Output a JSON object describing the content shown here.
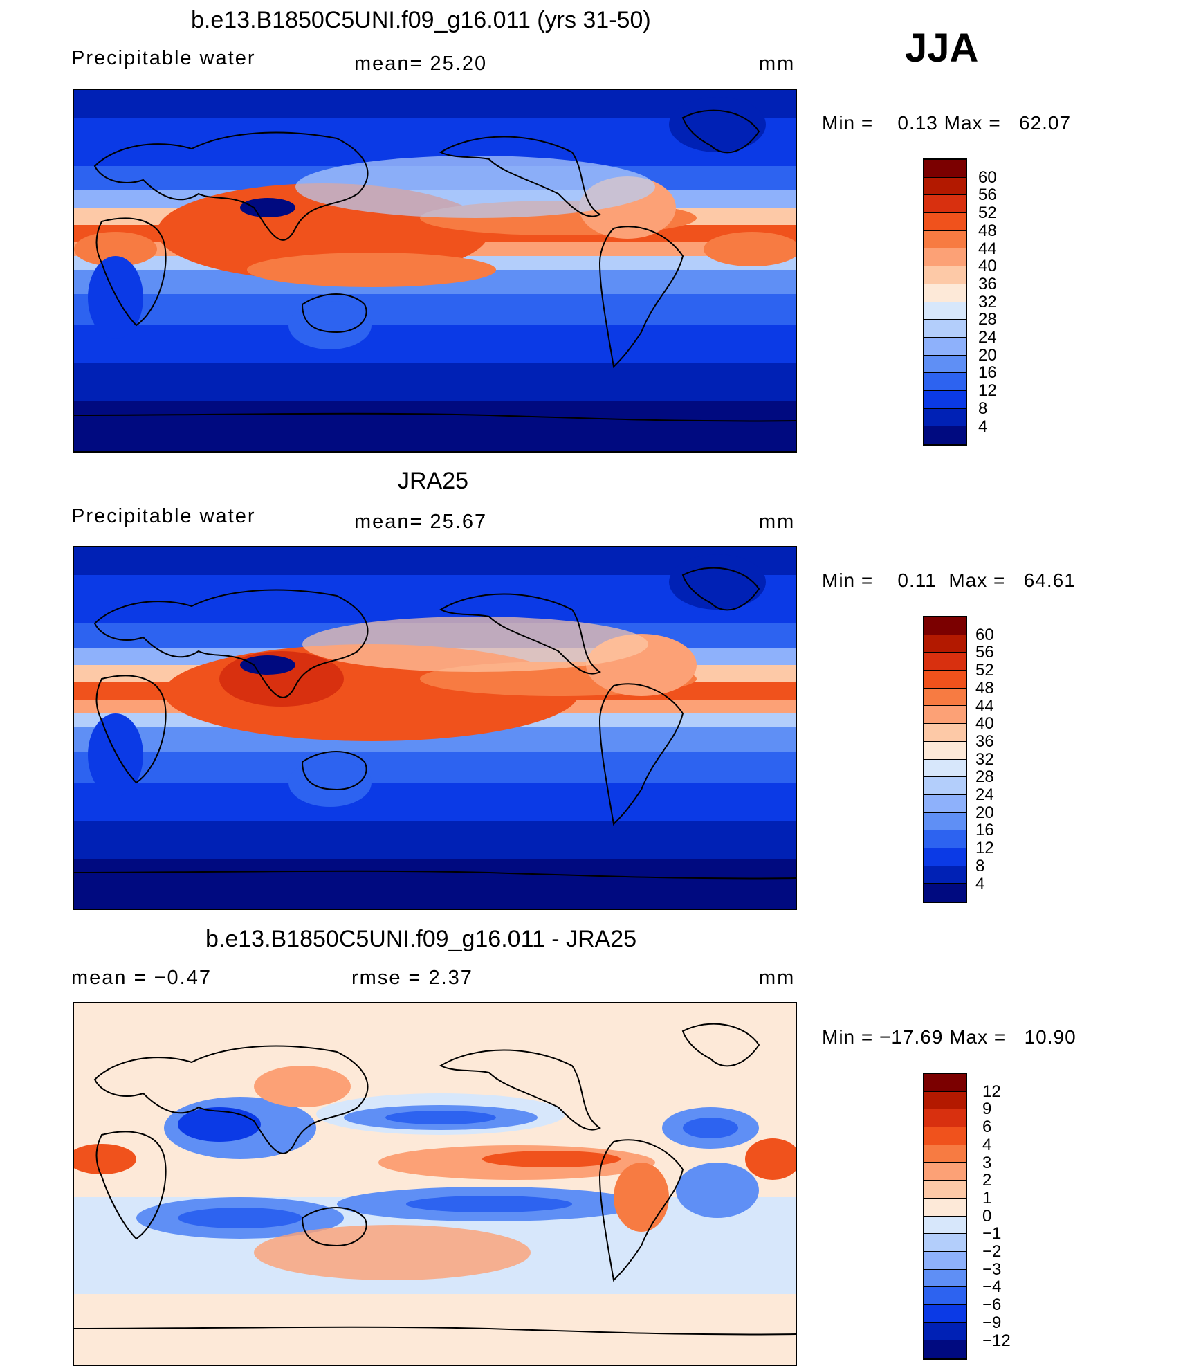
{
  "season": "JJA",
  "panels": [
    {
      "title": "b.e13.B1850C5UNI.f09_g16.011 (yrs 31-50)",
      "left_label": "Precipitable water",
      "center_label": "mean=   25.20",
      "units": "mm",
      "minmax": "Min =    0.13 Max =   62.07",
      "colorbar": {
        "labels": [
          "60",
          "56",
          "52",
          "48",
          "44",
          "40",
          "36",
          "32",
          "28",
          "24",
          "20",
          "16",
          "12",
          "8",
          "4"
        ],
        "colors": [
          "#7b0000",
          "#b31900",
          "#d8300f",
          "#f0521c",
          "#f77b42",
          "#fca176",
          "#fdc9a7",
          "#fde9d8",
          "#d7e7fb",
          "#b3cefb",
          "#8eb1fb",
          "#5f8ff5",
          "#2d63f0",
          "#0b3ae6",
          "#0021b5",
          "#000a80"
        ]
      }
    },
    {
      "title": "JRA25",
      "left_label": "Precipitable water",
      "center_label": "mean=   25.67",
      "units": "mm",
      "minmax": "Min =    0.11  Max =   64.61",
      "colorbar": {
        "labels": [
          "60",
          "56",
          "52",
          "48",
          "44",
          "40",
          "36",
          "32",
          "28",
          "24",
          "20",
          "16",
          "12",
          "8",
          "4"
        ],
        "colors": [
          "#7b0000",
          "#b31900",
          "#d8300f",
          "#f0521c",
          "#f77b42",
          "#fca176",
          "#fdc9a7",
          "#fde9d8",
          "#d7e7fb",
          "#b3cefb",
          "#8eb1fb",
          "#5f8ff5",
          "#2d63f0",
          "#0b3ae6",
          "#0021b5",
          "#000a80"
        ]
      }
    },
    {
      "title": "b.e13.B1850C5UNI.f09_g16.011 - JRA25",
      "left_label": "mean =   −0.47",
      "center_label": "rmse =    2.37",
      "units": "mm",
      "minmax": "Min = −17.69 Max =   10.90",
      "colorbar": {
        "labels": [
          "12",
          "9",
          "6",
          "4",
          "3",
          "2",
          "1",
          "0",
          "−1",
          "−2",
          "−3",
          "−4",
          "−6",
          "−9",
          "−12"
        ],
        "colors": [
          "#7b0000",
          "#b31900",
          "#d8300f",
          "#f0521c",
          "#f77b42",
          "#fca176",
          "#fdc9a7",
          "#fde9d8",
          "#d7e7fb",
          "#b3cefb",
          "#8eb1fb",
          "#5f8ff5",
          "#2d63f0",
          "#0b3ae6",
          "#0021b5",
          "#000a80"
        ]
      }
    }
  ]
}
